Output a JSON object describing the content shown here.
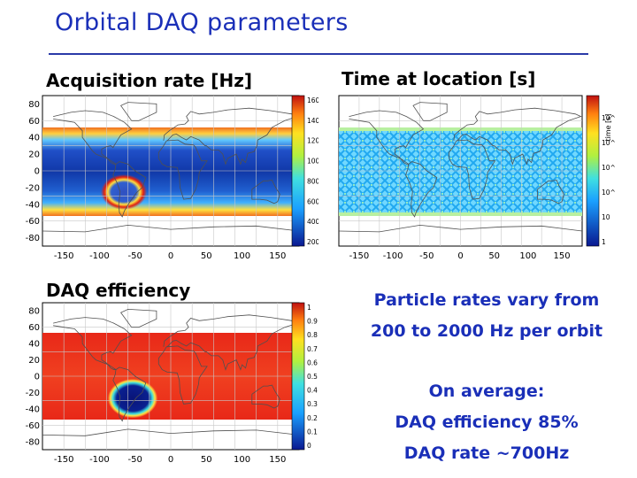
{
  "slide": {
    "title": "Orbital DAQ parameters"
  },
  "panels": {
    "rate": {
      "title": "Acquisition rate [Hz]",
      "colorbar_ticks": [
        "1600",
        "1400",
        "1200",
        "1000",
        "800",
        "600",
        "400",
        "200"
      ]
    },
    "time": {
      "title": "Time at location [s]",
      "colorbar_label": "time [s]",
      "colorbar_ticks": [
        "10^5",
        "10^4",
        "10^3",
        "10^2",
        "10",
        "1"
      ]
    },
    "eff": {
      "title": "DAQ efficiency",
      "colorbar_ticks": [
        "1",
        "0.9",
        "0.8",
        "0.7",
        "0.6",
        "0.5",
        "0.4",
        "0.3",
        "0.2",
        "0.1",
        "0"
      ]
    }
  },
  "axes": {
    "x_ticks": [
      "-150",
      "-100",
      "-50",
      "0",
      "50",
      "100",
      "150"
    ],
    "y_ticks": [
      "80",
      "60",
      "40",
      "20",
      "0",
      "-20",
      "-40",
      "-60",
      "-80"
    ]
  },
  "notes": {
    "line1": "Particle rates vary from",
    "line2": "200 to 2000 Hz per orbit",
    "line3": "On average:",
    "line4": "DAQ efficiency 85%",
    "line5": "DAQ rate ~700Hz"
  },
  "colors": {
    "title_blue": "#1a2fb8",
    "rule_blue": "#2a3aa8"
  }
}
